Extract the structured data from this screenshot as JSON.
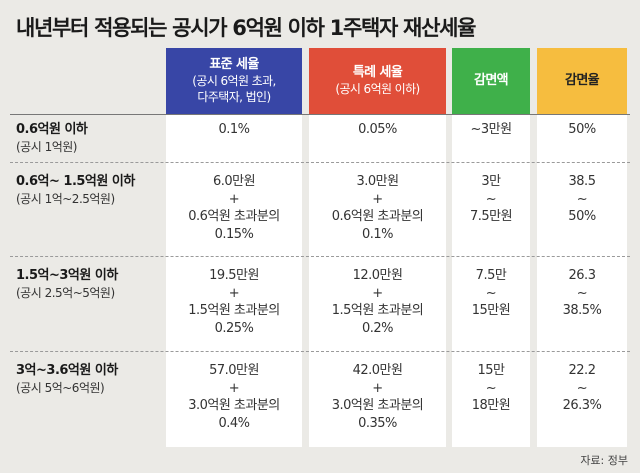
{
  "title": "내년부터 적용되는 공시가 6억원 이하 1주택자 재산세율",
  "headers": [
    {
      "main": "표준 세율",
      "sub": "(공시 6억원 초과,\n다주택자, 법인)",
      "color": "#3846a6",
      "text_color": "#ffffff"
    },
    {
      "main": "특례 세율",
      "sub": "(공시 6억원 이하)",
      "color": "#e04e39",
      "text_color": "#ffffff"
    },
    {
      "main": "감면액",
      "sub": "",
      "color": "#3fb04a",
      "text_color": "#ffffff"
    },
    {
      "main": "감면율",
      "sub": "",
      "color": "#f6bd3f",
      "text_color": "#222222"
    }
  ],
  "rows": [
    {
      "label": "0.6억원 이하",
      "sublabel": "(공시 1억원)",
      "cells": [
        "0.1%",
        "0.05%",
        "~3만원",
        "50%"
      ]
    },
    {
      "label": "0.6억~ 1.5억원 이하",
      "sublabel": "(공시 1억~2.5억원)",
      "cells": [
        "6.0만원\n+\n0.6억원 초과분의\n0.15%",
        "3.0만원\n+\n0.6억원 초과분의\n0.1%",
        "3만\n~\n7.5만원",
        "38.5\n~\n50%"
      ]
    },
    {
      "label": "1.5억~3억원 이하",
      "sublabel": "(공시 2.5억~5억원)",
      "cells": [
        "19.5만원\n+\n1.5억원 초과분의\n0.25%",
        "12.0만원\n+\n1.5억원 초과분의\n0.2%",
        "7.5만\n~\n15만원",
        "26.3\n~\n38.5%"
      ]
    },
    {
      "label": "3억~3.6억원 이하",
      "sublabel": "(공시 5억~6억원)",
      "cells": [
        "57.0만원\n+\n3.0억원 초과분의\n0.4%",
        "42.0만원\n+\n3.0억원 초과분의\n0.35%",
        "15만\n~\n18만원",
        "22.2\n~\n26.3%"
      ]
    }
  ],
  "source": "자료: 정부"
}
